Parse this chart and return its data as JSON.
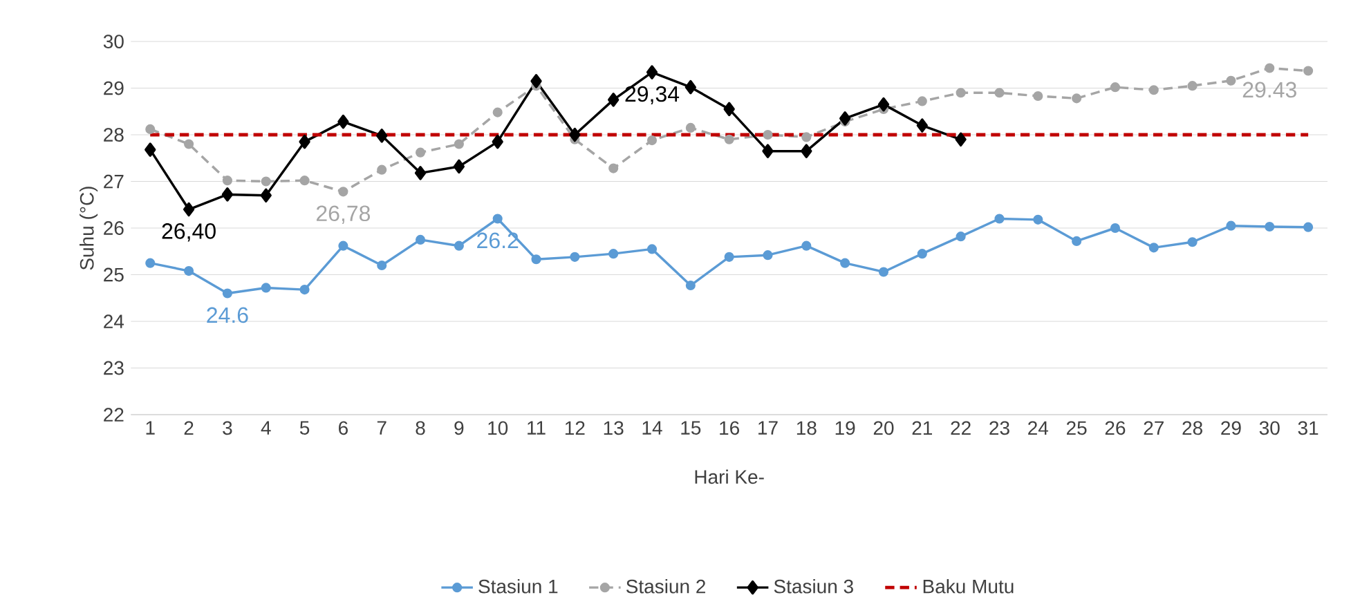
{
  "chart_data": {
    "type": "line",
    "xlabel": "Hari Ke-",
    "ylabel": "Suhu (°C)",
    "categories": [
      "1",
      "2",
      "3",
      "4",
      "5",
      "6",
      "7",
      "8",
      "9",
      "10",
      "11",
      "12",
      "13",
      "14",
      "15",
      "16",
      "17",
      "18",
      "19",
      "20",
      "21",
      "22",
      "23",
      "24",
      "25",
      "26",
      "27",
      "28",
      "29",
      "30",
      "31"
    ],
    "ylim": [
      22,
      30
    ],
    "yticks": [
      22,
      23,
      24,
      25,
      26,
      27,
      28,
      29,
      30
    ],
    "grid": "y",
    "legend": "bottom",
    "series": [
      {
        "name": "Stasiun 1",
        "color": "#5b9bd5",
        "marker": "circle",
        "line_style": "solid",
        "values": [
          25.25,
          25.08,
          24.6,
          24.72,
          24.68,
          25.62,
          25.2,
          25.75,
          25.62,
          26.2,
          25.33,
          25.38,
          25.45,
          25.55,
          24.77,
          25.38,
          25.42,
          25.62,
          25.25,
          25.06,
          25.45,
          25.82,
          26.2,
          26.18,
          25.72,
          26.0,
          25.58,
          25.7,
          26.05,
          26.03,
          26.02
        ],
        "value_labels": [
          null,
          null,
          "24.6",
          null,
          null,
          null,
          null,
          null,
          null,
          "26.2",
          null,
          null,
          null,
          null,
          null,
          null,
          null,
          null,
          null,
          null,
          null,
          null,
          null,
          null,
          null,
          null,
          null,
          null,
          null,
          null,
          null
        ]
      },
      {
        "name": "Stasiun 2",
        "color": "#a5a5a5",
        "marker": "circle",
        "line_style": "dashed",
        "values": [
          28.12,
          27.8,
          27.02,
          27.0,
          27.02,
          26.78,
          27.25,
          27.62,
          27.8,
          28.48,
          29.05,
          27.9,
          27.28,
          27.88,
          28.15,
          27.9,
          28.0,
          27.95,
          28.28,
          28.55,
          28.72,
          28.9,
          28.9,
          28.83,
          28.78,
          29.02,
          28.96,
          29.05,
          29.16,
          29.43,
          29.37
        ],
        "value_labels": [
          null,
          null,
          null,
          null,
          null,
          "26,78",
          null,
          null,
          null,
          null,
          null,
          null,
          null,
          null,
          null,
          null,
          null,
          null,
          null,
          null,
          null,
          null,
          null,
          null,
          null,
          null,
          null,
          null,
          null,
          "29.43",
          null
        ]
      },
      {
        "name": "Stasiun 3",
        "color": "#000000",
        "marker": "diamond",
        "line_style": "solid",
        "values": [
          27.68,
          26.4,
          26.72,
          26.7,
          27.85,
          28.28,
          27.98,
          27.18,
          27.32,
          27.85,
          29.15,
          28.0,
          28.75,
          29.34,
          29.02,
          28.55,
          27.65,
          27.65,
          28.35,
          28.65,
          28.2,
          27.9,
          null,
          null,
          null,
          null,
          null,
          null,
          null,
          null,
          null
        ],
        "value_labels": [
          null,
          "26,40",
          null,
          null,
          null,
          null,
          null,
          null,
          null,
          null,
          null,
          null,
          null,
          "29,34",
          null,
          null,
          null,
          null,
          null,
          null,
          null,
          null,
          null,
          null,
          null,
          null,
          null,
          null,
          null,
          null,
          null
        ]
      },
      {
        "name": "Baku Mutu",
        "color": "#c00000",
        "marker": "none",
        "line_style": "dashed",
        "values": [
          28,
          28,
          28,
          28,
          28,
          28,
          28,
          28,
          28,
          28,
          28,
          28,
          28,
          28,
          28,
          28,
          28,
          28,
          28,
          28,
          28,
          28,
          28,
          28,
          28,
          28,
          28,
          28,
          28,
          28,
          28
        ]
      }
    ]
  }
}
